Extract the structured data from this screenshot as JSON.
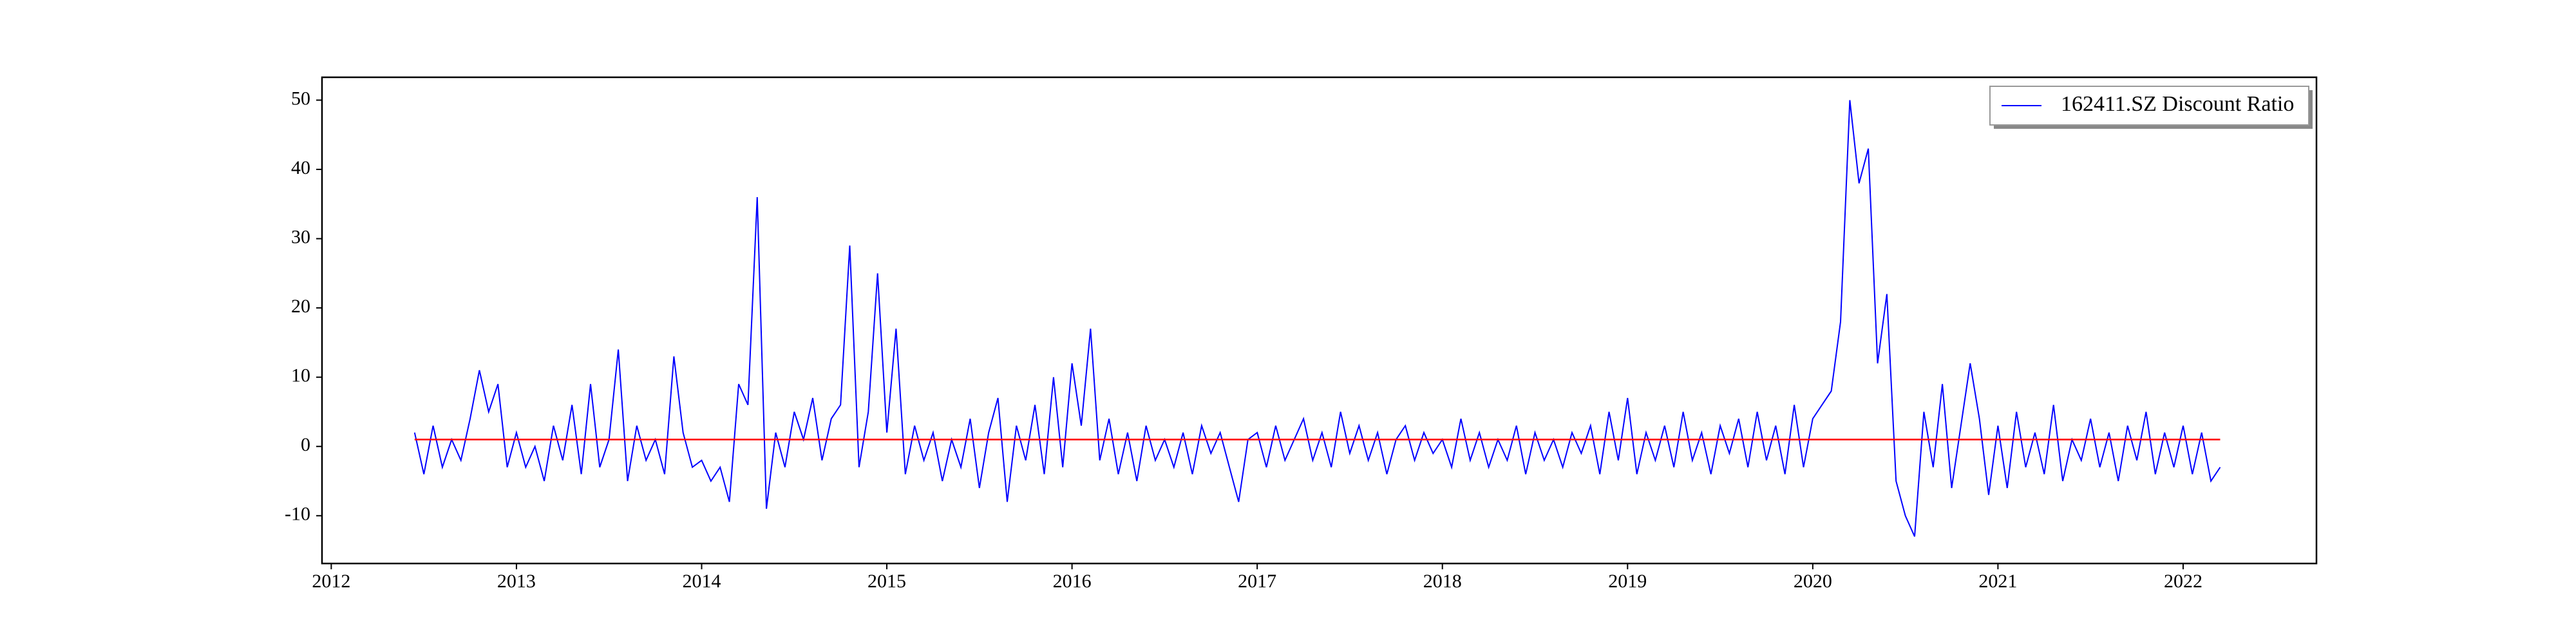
{
  "chart_data": {
    "type": "line",
    "x": [
      2012.45,
      2012.5,
      2012.55,
      2012.6,
      2012.65,
      2012.7,
      2012.75,
      2012.8,
      2012.85,
      2012.9,
      2012.95,
      2013,
      2013.05,
      2013.1,
      2013.15,
      2013.2,
      2013.25,
      2013.3,
      2013.35,
      2013.4,
      2013.45,
      2013.5,
      2013.55,
      2013.6,
      2013.65,
      2013.7,
      2013.75,
      2013.8,
      2013.85,
      2013.9,
      2013.95,
      2014,
      2014.05,
      2014.1,
      2014.15,
      2014.2,
      2014.25,
      2014.3,
      2014.35,
      2014.4,
      2014.45,
      2014.5,
      2014.55,
      2014.6,
      2014.65,
      2014.7,
      2014.75,
      2014.8,
      2014.85,
      2014.9,
      2014.95,
      2015,
      2015.05,
      2015.1,
      2015.15,
      2015.2,
      2015.25,
      2015.3,
      2015.35,
      2015.4,
      2015.45,
      2015.5,
      2015.55,
      2015.6,
      2015.65,
      2015.7,
      2015.75,
      2015.8,
      2015.85,
      2015.9,
      2015.95,
      2016,
      2016.05,
      2016.1,
      2016.15,
      2016.2,
      2016.25,
      2016.3,
      2016.35,
      2016.4,
      2016.45,
      2016.5,
      2016.55,
      2016.6,
      2016.65,
      2016.7,
      2016.75,
      2016.8,
      2016.85,
      2016.9,
      2016.95,
      2017,
      2017.05,
      2017.1,
      2017.15,
      2017.2,
      2017.25,
      2017.3,
      2017.35,
      2017.4,
      2017.45,
      2017.5,
      2017.55,
      2017.6,
      2017.65,
      2017.7,
      2017.75,
      2017.8,
      2017.85,
      2017.9,
      2017.95,
      2018,
      2018.05,
      2018.1,
      2018.15,
      2018.2,
      2018.25,
      2018.3,
      2018.35,
      2018.4,
      2018.45,
      2018.5,
      2018.55,
      2018.6,
      2018.65,
      2018.7,
      2018.75,
      2018.8,
      2018.85,
      2018.9,
      2018.95,
      2019,
      2019.05,
      2019.1,
      2019.15,
      2019.2,
      2019.25,
      2019.3,
      2019.35,
      2019.4,
      2019.45,
      2019.5,
      2019.55,
      2019.6,
      2019.65,
      2019.7,
      2019.75,
      2019.8,
      2019.85,
      2019.9,
      2019.95,
      2020,
      2020.05,
      2020.1,
      2020.15,
      2020.2,
      2020.25,
      2020.3,
      2020.35,
      2020.4,
      2020.45,
      2020.5,
      2020.55,
      2020.6,
      2020.65,
      2020.7,
      2020.75,
      2020.8,
      2020.85,
      2020.9,
      2020.95,
      2021,
      2021.05,
      2021.1,
      2021.15,
      2021.2,
      2021.25,
      2021.3,
      2021.35,
      2021.4,
      2021.45,
      2021.5,
      2021.55,
      2021.6,
      2021.65,
      2021.7,
      2021.75,
      2021.8,
      2021.85,
      2021.9,
      2021.95,
      2022,
      2022.05,
      2022.1,
      2022.15,
      2022.2
    ],
    "series": [
      {
        "name": "162411.SZ Discount Ratio",
        "color": "#0000ff",
        "values": [
          2,
          -4,
          3,
          -3,
          1,
          -2,
          4,
          11,
          5,
          9,
          -3,
          2,
          -3,
          0,
          -5,
          3,
          -2,
          6,
          -4,
          9,
          -3,
          1,
          14,
          -5,
          3,
          -2,
          1,
          -4,
          13,
          2,
          -3,
          -2,
          -5,
          -3,
          -8,
          9,
          6,
          36,
          -9,
          2,
          -3,
          5,
          1,
          7,
          -2,
          4,
          6,
          29,
          -3,
          5,
          25,
          2,
          17,
          -4,
          3,
          -2,
          2,
          -5,
          1,
          -3,
          4,
          -6,
          2,
          7,
          -8,
          3,
          -2,
          6,
          -4,
          10,
          -3,
          12,
          3,
          17,
          -2,
          4,
          -4,
          2,
          -5,
          3,
          -2,
          1,
          -3,
          2,
          -4,
          3,
          -1,
          2,
          -3,
          -8,
          1,
          2,
          -3,
          3,
          -2,
          1,
          4,
          -2,
          2,
          -3,
          5,
          -1,
          3,
          -2,
          2,
          -4,
          1,
          3,
          -2,
          2,
          -1,
          1,
          -3,
          4,
          -2,
          2,
          -3,
          1,
          -2,
          3,
          -4,
          2,
          -2,
          1,
          -3,
          2,
          -1,
          3,
          -4,
          5,
          -2,
          7,
          -4,
          2,
          -2,
          3,
          -3,
          5,
          -2,
          2,
          -4,
          3,
          -1,
          4,
          -3,
          5,
          -2,
          3,
          -4,
          6,
          -3,
          4,
          6,
          8,
          18,
          50,
          38,
          43,
          12,
          22,
          -5,
          -10,
          -13,
          5,
          -3,
          9,
          -6,
          3,
          12,
          4,
          -7,
          3,
          -6,
          5,
          -3,
          2,
          -4,
          6,
          -5,
          1,
          -2,
          4,
          -3,
          2,
          -5,
          3,
          -2,
          5,
          -4,
          2,
          -3,
          3,
          -4,
          2,
          -5,
          -3
        ]
      }
    ],
    "hline": {
      "value": 1,
      "color": "#ff0000"
    },
    "xlim": [
      2011.95,
      2022.72
    ],
    "xticks": [
      2012,
      2013,
      2014,
      2015,
      2016,
      2017,
      2018,
      2019,
      2020,
      2021,
      2022
    ],
    "ylim": [
      -16.9,
      53.3
    ],
    "yticks": [
      -10,
      0,
      10,
      20,
      30,
      40,
      50
    ],
    "legend": "upper right"
  }
}
